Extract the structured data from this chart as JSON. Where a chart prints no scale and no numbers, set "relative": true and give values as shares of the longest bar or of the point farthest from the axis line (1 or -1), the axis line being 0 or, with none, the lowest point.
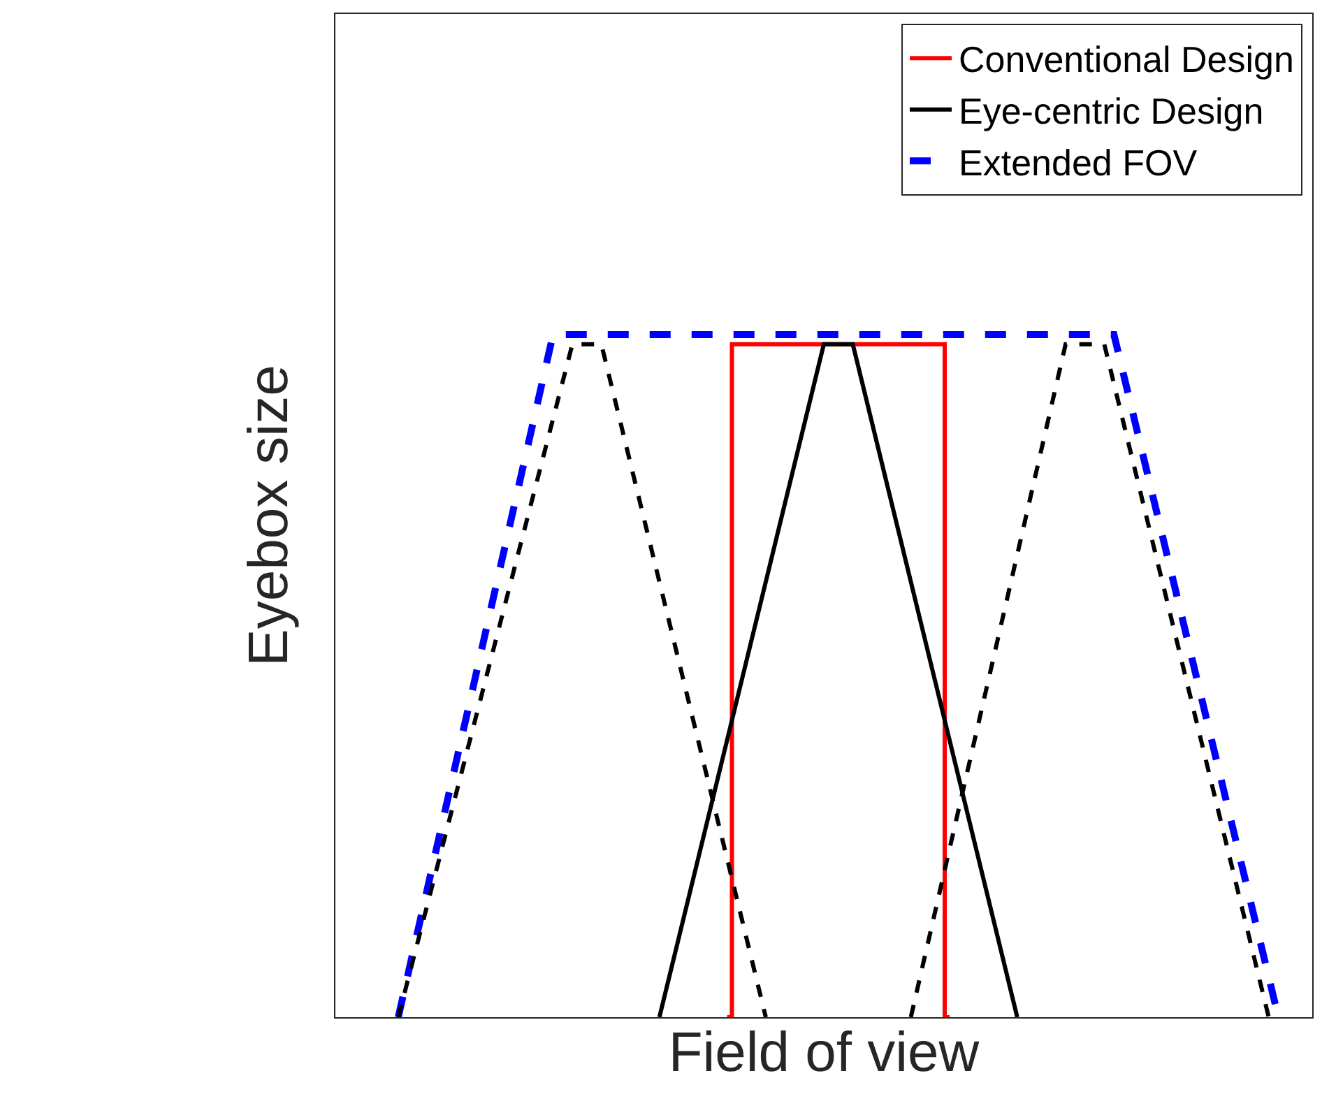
{
  "chart_data": {
    "type": "line",
    "relative": true,
    "xlabel": "Field of view",
    "ylabel": "Eyebox size",
    "tick_labels": false,
    "legend": "top right",
    "grid": false,
    "marker": "none",
    "categories": [
      null,
      null,
      null,
      null,
      null,
      null,
      null,
      null,
      null,
      null,
      null,
      null,
      null,
      null,
      null,
      null,
      null,
      null,
      null,
      null,
      null,
      null,
      null,
      null,
      null,
      null,
      null,
      null,
      null,
      null,
      null,
      null,
      null,
      null,
      null,
      null,
      null,
      null,
      null,
      null,
      null,
      null,
      null,
      null,
      null,
      null,
      null,
      null,
      null,
      null,
      null,
      null,
      null,
      null,
      null,
      null,
      null,
      null,
      null,
      null,
      null,
      null,
      null,
      null,
      null,
      null,
      null,
      null,
      null,
      null,
      null,
      null,
      null,
      null,
      null,
      null,
      null,
      null,
      null,
      null,
      null,
      null,
      null,
      null,
      null,
      null,
      null,
      null,
      null,
      null,
      null,
      null,
      null,
      null,
      null,
      null,
      null,
      null,
      null,
      null,
      null
    ],
    "series": [
      {
        "name": "Conventional Design",
        "type": "step",
        "color": "#ff0000",
        "line_style": "solid",
        "values": [
          null,
          null,
          null,
          null,
          null,
          null,
          null,
          null,
          null,
          null,
          null,
          null,
          null,
          null,
          null,
          null,
          null,
          null,
          null,
          null,
          null,
          null,
          null,
          null,
          null,
          null,
          null,
          null,
          null,
          null,
          null,
          null,
          null,
          null,
          null,
          null,
          null,
          null,
          null,
          null,
          0,
          0.986,
          null,
          null,
          null,
          null,
          null,
          null,
          null,
          null,
          null,
          null,
          null,
          null,
          null,
          null,
          null,
          null,
          null,
          null,
          null,
          null,
          0.986,
          0,
          null,
          null,
          null,
          null,
          null,
          null,
          null,
          null,
          null,
          null,
          null,
          null,
          null,
          null,
          null,
          null,
          null,
          null,
          null,
          null,
          null,
          null,
          null,
          null,
          null,
          null,
          null,
          null,
          null,
          null,
          null,
          null,
          null,
          null,
          null,
          null,
          null
        ]
      },
      {
        "name": "Eye-centric Design",
        "color": "#000000",
        "line_style": "solid",
        "values": [
          null,
          null,
          null,
          null,
          null,
          null,
          null,
          null,
          null,
          null,
          null,
          null,
          null,
          null,
          null,
          null,
          null,
          null,
          null,
          null,
          null,
          null,
          null,
          null,
          null,
          null,
          null,
          null,
          null,
          null,
          null,
          null,
          null,
          0,
          null,
          null,
          null,
          null,
          null,
          null,
          null,
          null,
          null,
          null,
          null,
          null,
          null,
          null,
          null,
          null,
          0.986,
          null,
          null,
          0.986,
          null,
          null,
          null,
          null,
          null,
          null,
          null,
          null,
          null,
          null,
          null,
          null,
          null,
          null,
          null,
          null,
          0,
          null,
          null,
          null,
          null,
          null,
          null,
          null,
          null,
          null,
          null,
          null,
          null,
          null,
          null,
          null,
          null,
          null,
          null,
          null,
          null,
          null,
          null,
          null,
          null,
          null,
          null,
          null,
          null,
          null,
          null
        ]
      },
      {
        "name": "Extended FOV",
        "color": "#0000ff",
        "line_style": "dashed",
        "values": [
          null,
          null,
          null,
          null,
          null,
          null,
          0,
          null,
          null,
          null,
          null,
          null,
          null,
          null,
          null,
          null,
          null,
          null,
          null,
          null,
          null,
          null,
          1,
          null,
          null,
          null,
          null,
          null,
          null,
          null,
          null,
          null,
          null,
          null,
          null,
          null,
          null,
          null,
          null,
          null,
          null,
          null,
          null,
          null,
          null,
          null,
          null,
          null,
          null,
          null,
          null,
          null,
          null,
          null,
          null,
          null,
          null,
          null,
          null,
          null,
          null,
          null,
          null,
          null,
          null,
          null,
          null,
          null,
          null,
          null,
          null,
          null,
          null,
          null,
          null,
          null,
          null,
          null,
          null,
          null,
          1,
          null,
          null,
          null,
          null,
          null,
          null,
          null,
          null,
          null,
          null,
          null,
          null,
          null,
          null,
          null,
          null,
          0,
          null,
          null,
          null
        ]
      },
      {
        "color": "#000000",
        "line_style": "dashed",
        "values": [
          null,
          null,
          null,
          null,
          null,
          null,
          0,
          null,
          null,
          null,
          null,
          null,
          null,
          null,
          null,
          null,
          null,
          null,
          null,
          null,
          null,
          null,
          null,
          null,
          0.986,
          null,
          null,
          0.986,
          null,
          null,
          null,
          null,
          null,
          null,
          null,
          null,
          null,
          null,
          null,
          null,
          null,
          null,
          null,
          null,
          0,
          null,
          null,
          null,
          null,
          null,
          null,
          null,
          null,
          null,
          null,
          null,
          null,
          null,
          null,
          null,
          null,
          null,
          null,
          null,
          null,
          null,
          null,
          null,
          null,
          null,
          null,
          null,
          null,
          null,
          null,
          null,
          null,
          null,
          null,
          null,
          null,
          null,
          null,
          null,
          null,
          null,
          null,
          null,
          null,
          null,
          null,
          null,
          null,
          null,
          null,
          null,
          null,
          null,
          null,
          null,
          null
        ]
      },
      {
        "color": "#000000",
        "line_style": "dashed",
        "values": [
          null,
          null,
          null,
          null,
          null,
          null,
          null,
          null,
          null,
          null,
          null,
          null,
          null,
          null,
          null,
          null,
          null,
          null,
          null,
          null,
          null,
          null,
          null,
          null,
          null,
          null,
          null,
          null,
          null,
          null,
          null,
          null,
          null,
          null,
          null,
          null,
          null,
          null,
          null,
          null,
          null,
          null,
          null,
          null,
          null,
          null,
          null,
          null,
          null,
          null,
          null,
          null,
          null,
          null,
          null,
          null,
          null,
          null,
          null,
          0,
          null,
          null,
          null,
          null,
          null,
          null,
          null,
          null,
          null,
          null,
          null,
          null,
          null,
          null,
          null,
          0.986,
          null,
          null,
          null,
          0.986,
          null,
          null,
          null,
          null,
          null,
          null,
          null,
          null,
          null,
          null,
          null,
          null,
          null,
          null,
          null,
          null,
          0,
          null,
          null,
          null,
          null
        ]
      }
    ]
  }
}
